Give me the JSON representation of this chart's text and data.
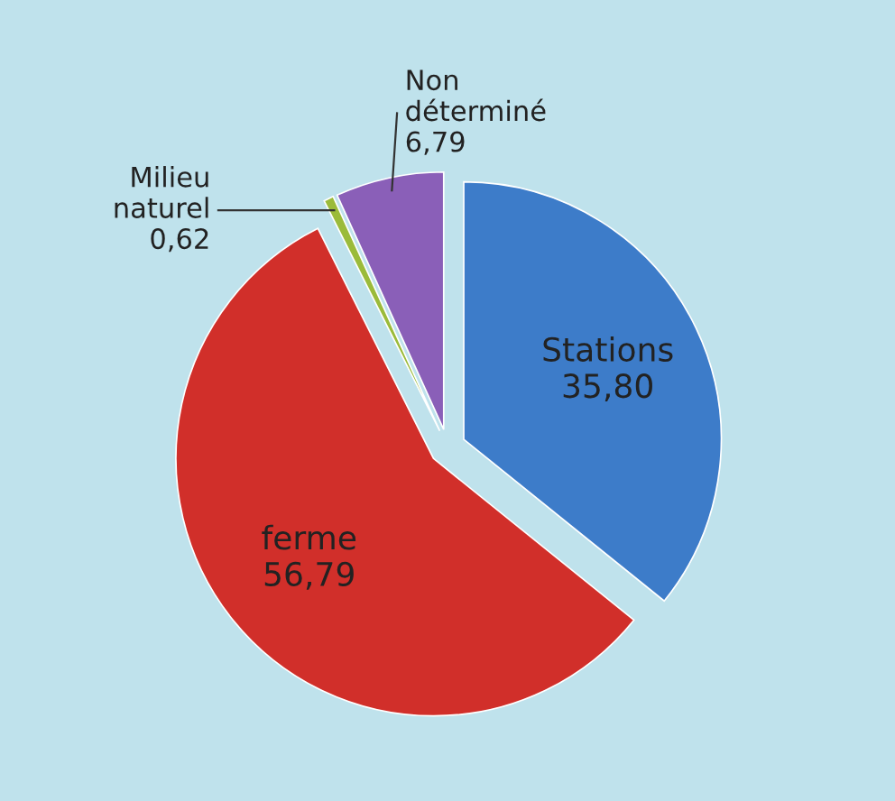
{
  "chart_data": {
    "type": "pie",
    "categories": [
      "Stations",
      "ferme",
      "Milieu naturel",
      "Non déterminé"
    ],
    "values": [
      35.8,
      56.79,
      0.62,
      6.79
    ],
    "value_labels": [
      "35,80",
      "56,79",
      "0,62",
      "6,79"
    ],
    "colors": [
      "#3d7cc9",
      "#d12f2a",
      "#9bbb3a",
      "#8a5fb8"
    ],
    "legend": false
  }
}
